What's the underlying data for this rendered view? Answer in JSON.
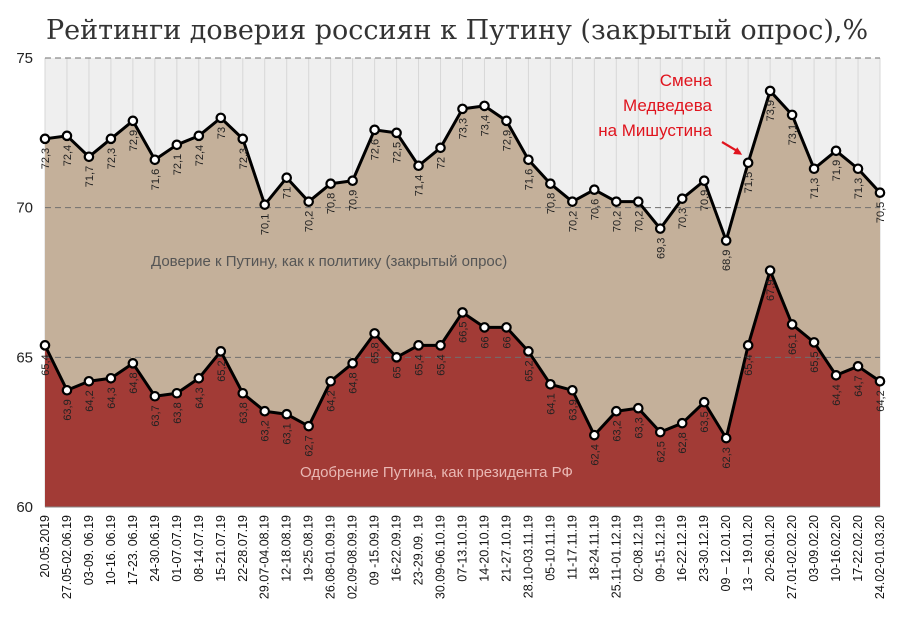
{
  "chart_data": {
    "type": "area",
    "title": "Рейтинги доверия россиян к Путину (закрытый опрос),%",
    "ylim": [
      60,
      75
    ],
    "yticks": [
      60,
      65,
      70,
      75
    ],
    "grid": true,
    "categories": [
      "20.05.2019",
      "27.05-02.06.19",
      "03-09. 06.19",
      "10-16. 06.19",
      "17-23. 06.19",
      "24-30.06.19",
      "01-07.07.19",
      "08-14.07.19",
      "15-21.07.19",
      "22-28.07.19",
      "29.07-04.08.19",
      "12-18.08.19",
      "19-25.08.19",
      "26.08-01.09.19",
      "02.09-08.09.19",
      "09 -15.09.19",
      "16-22.09.19",
      "23-29.09. 19",
      "30.09-06.10.19",
      "07-13.10.19",
      "14-20.10.19",
      "21-27.10.19",
      "28.10-03.11.19",
      "05-10.11.19",
      "11-17.11.19",
      "18-24.11.19",
      "25.11-01.12.19",
      "02-08.12.19",
      "09-15.12.19",
      "16-22.12.19",
      "23-30.12.19",
      "09 – 12.01.20",
      "13 – 19.01.20",
      "20-26.01.20",
      "27.01-02.02.20",
      "03-09.02.20",
      "10-16.02.20",
      "17-22.02.20",
      "24.02-01.03.20"
    ],
    "series": [
      {
        "name": "Доверие к Путину, как к политику (закрытый опрос)",
        "color": "#c4b09a",
        "values": [
          72.3,
          72.4,
          71.7,
          72.3,
          72.9,
          71.6,
          72.1,
          72.4,
          73,
          72.3,
          70.1,
          71,
          70.2,
          70.8,
          70.9,
          72.6,
          72.5,
          71.4,
          72,
          73.3,
          73.4,
          72.9,
          71.6,
          70.8,
          70.2,
          70.6,
          70.2,
          70.2,
          69.3,
          70.3,
          70.9,
          68.9,
          71.5,
          73.9,
          73.1,
          71.3,
          71.9,
          71.3,
          70.5
        ],
        "labels": [
          "72,3",
          "72,4",
          "71,7",
          "72,3",
          "72,9",
          "71,6",
          "72,1",
          "72,4",
          "73",
          "72,3",
          "70,1",
          "71",
          "70,2",
          "70,8",
          "70,9",
          "72,6",
          "72,5",
          "71,4",
          "72",
          "73,3",
          "73,4",
          "72,9",
          "71,6",
          "70,8",
          "70,2",
          "70,6",
          "70,2",
          "70,2",
          "69,3",
          "70,3",
          "70,9",
          "68,9",
          "71,5",
          "73,9",
          "73,1",
          "71,3",
          "71,9",
          "71,3",
          "70,5"
        ]
      },
      {
        "name": "Одобрение Путина, как президента РФ",
        "color": "#a23b36",
        "values": [
          65.4,
          63.9,
          64.2,
          64.3,
          64.8,
          63.7,
          63.8,
          64.3,
          65.2,
          63.8,
          63.2,
          63.1,
          62.7,
          64.2,
          64.8,
          65.8,
          65,
          65.4,
          65.4,
          66.5,
          66,
          66,
          65.2,
          64.1,
          63.9,
          62.4,
          63.2,
          63.3,
          62.5,
          62.8,
          63.5,
          62.3,
          65.4,
          67.9,
          66.1,
          65.5,
          64.4,
          64.7,
          64.2
        ],
        "labels": [
          "65,4",
          "63,9",
          "64,2",
          "64,3",
          "64,8",
          "63,7",
          "63,8",
          "64,3",
          "65,2",
          "63,8",
          "63,2",
          "63,1",
          "62,7",
          "64,2",
          "64,8",
          "65,8",
          "65",
          "65,4",
          "65,4",
          "66,5",
          "66",
          "66",
          "65,2",
          "64,1",
          "63,9",
          "62,4",
          "63,2",
          "63,3",
          "62,5",
          "62,8",
          "63,5",
          "62,3",
          "65,4",
          "67,9",
          "66,1",
          "65,5",
          "64,4",
          "64,7",
          "64,2"
        ]
      }
    ],
    "annotation": {
      "lines": [
        "Смена",
        "Медведева",
        "на Мишустина"
      ],
      "color": "#e0141e",
      "category": "13 – 19.01.20"
    },
    "plot_background": "#efefef",
    "axis_labels_color": "#222222"
  }
}
